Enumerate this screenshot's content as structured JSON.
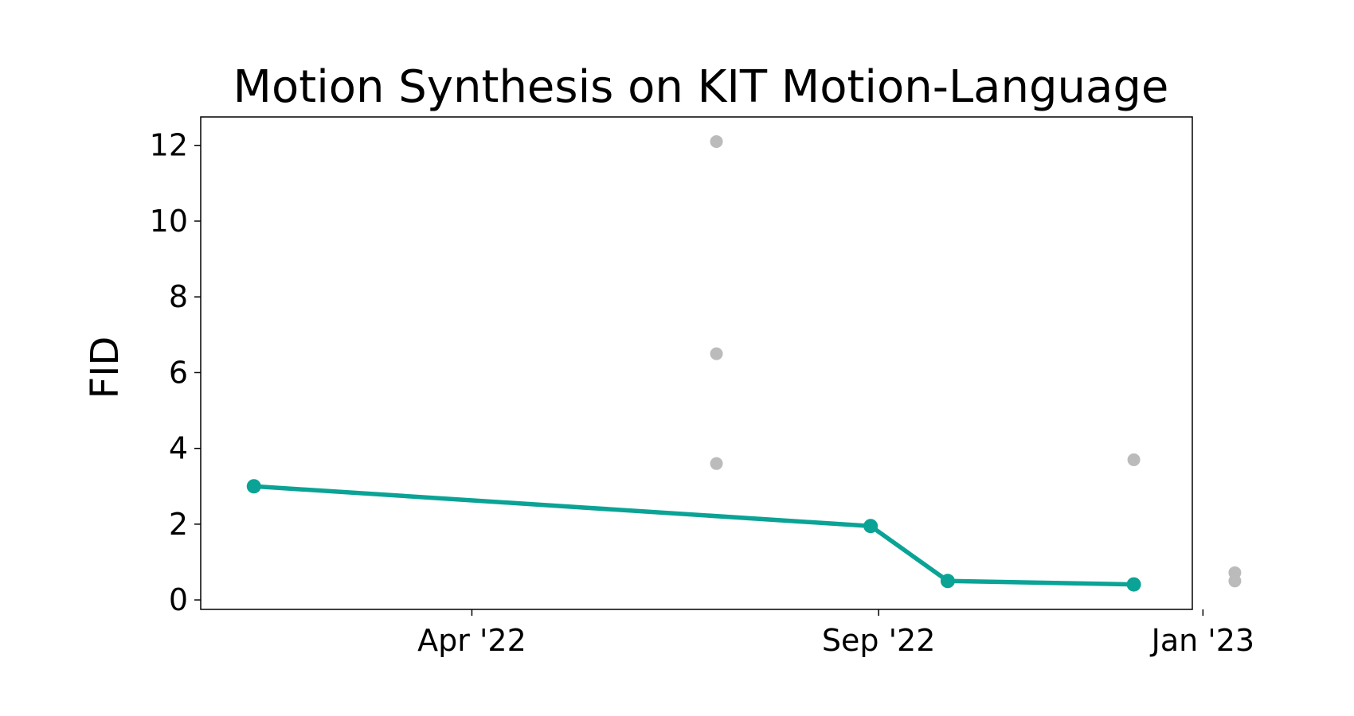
{
  "chart_data": {
    "type": "scatter",
    "title": "Motion Synthesis on KIT Motion-Language",
    "xlabel": "",
    "ylabel": "FID",
    "xlim": [
      "2021-12-20",
      "2022-12-28"
    ],
    "ylim": [
      -0.25,
      12.75
    ],
    "y_ticks": [
      0,
      2,
      4,
      6,
      8,
      10,
      12
    ],
    "x_ticks": [
      {
        "date": "2022-04-01",
        "label": "Apr '22"
      },
      {
        "date": "2022-09-01",
        "label": "Sep '22"
      },
      {
        "date": "2023-01-01",
        "label": "Jan '23"
      }
    ],
    "grid": false,
    "series": [
      {
        "role": "state-of-the-art",
        "style": "line+markers",
        "color": "#0aa396",
        "points": [
          {
            "x": "2022-01-09",
            "y": 3.0
          },
          {
            "x": "2022-08-29",
            "y": 1.95
          },
          {
            "x": "2022-09-27",
            "y": 0.5
          },
          {
            "x": "2022-12-06",
            "y": 0.41
          }
        ]
      },
      {
        "role": "other",
        "style": "markers",
        "color": "#bbbbbb",
        "points": [
          {
            "x": "2022-07-02",
            "y": 12.1
          },
          {
            "x": "2022-07-02",
            "y": 6.5
          },
          {
            "x": "2022-07-02",
            "y": 3.6
          },
          {
            "x": "2022-12-06",
            "y": 3.7
          },
          {
            "x": "2023-01-13",
            "y": 0.72
          },
          {
            "x": "2023-01-13",
            "y": 0.5
          }
        ]
      }
    ]
  }
}
